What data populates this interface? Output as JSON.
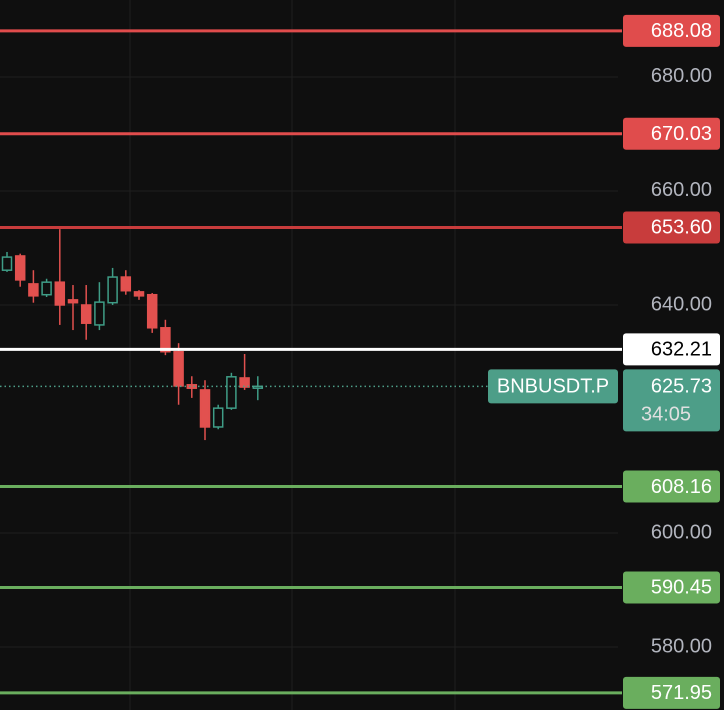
{
  "chart_data": {
    "type": "candlestick",
    "open": [
      646.1,
      648.6,
      643.7,
      641.8,
      644.0,
      640.9,
      640.0,
      636.5,
      640.4,
      644.9,
      642.3,
      641.8,
      636.0,
      631.8,
      626.0,
      625.1,
      618.6,
      621.9,
      627.2,
      625.4
    ],
    "high": [
      649.3,
      649.0,
      646.1,
      644.6,
      653.3,
      643.5,
      643.5,
      644.0,
      646.5,
      646.1,
      642.6,
      642.1,
      637.4,
      633.3,
      627.5,
      626.8,
      622.5,
      628.1,
      631.4,
      627.5
    ],
    "low": [
      645.8,
      643.2,
      640.4,
      641.4,
      636.5,
      635.6,
      633.9,
      635.6,
      640.0,
      641.8,
      640.9,
      635.1,
      631.2,
      622.5,
      623.7,
      616.3,
      618.2,
      621.6,
      625.1,
      623.3
    ],
    "close": [
      648.4,
      644.4,
      641.6,
      644.0,
      640.0,
      640.4,
      636.8,
      640.5,
      644.9,
      642.5,
      641.6,
      636.0,
      631.8,
      625.8,
      625.4,
      618.6,
      621.9,
      627.4,
      625.6,
      625.73
    ],
    "up_color": "#3f9d87",
    "down_color": "#e2514f",
    "ylim": [
      568.95,
      693.5
    ],
    "yticks": [
      {
        "value": 580,
        "label": "580.00"
      },
      {
        "value": 600,
        "label": "600.00"
      },
      {
        "value": 640,
        "label": "640.00"
      },
      {
        "value": 660,
        "label": "660.00"
      },
      {
        "value": 680,
        "label": "680.00"
      }
    ],
    "grid": true,
    "levels": {
      "values": [
        688.08,
        670.03,
        653.6,
        632.21,
        608.16,
        590.45,
        571.95
      ],
      "value_labels": [
        "688.08",
        "670.03",
        "653.60",
        "632.21",
        "608.16",
        "590.45",
        "571.95"
      ],
      "colors": [
        "#e04c4c",
        "#e04c4c",
        "#c83c3c",
        "#ffffff",
        "#6aae5e",
        "#6aae5e",
        "#6aae5e"
      ]
    },
    "current_price": {
      "value": 625.73,
      "symbol": "BNBUSDT.P",
      "countdown": "34:05",
      "color": "#4d9e88"
    }
  }
}
